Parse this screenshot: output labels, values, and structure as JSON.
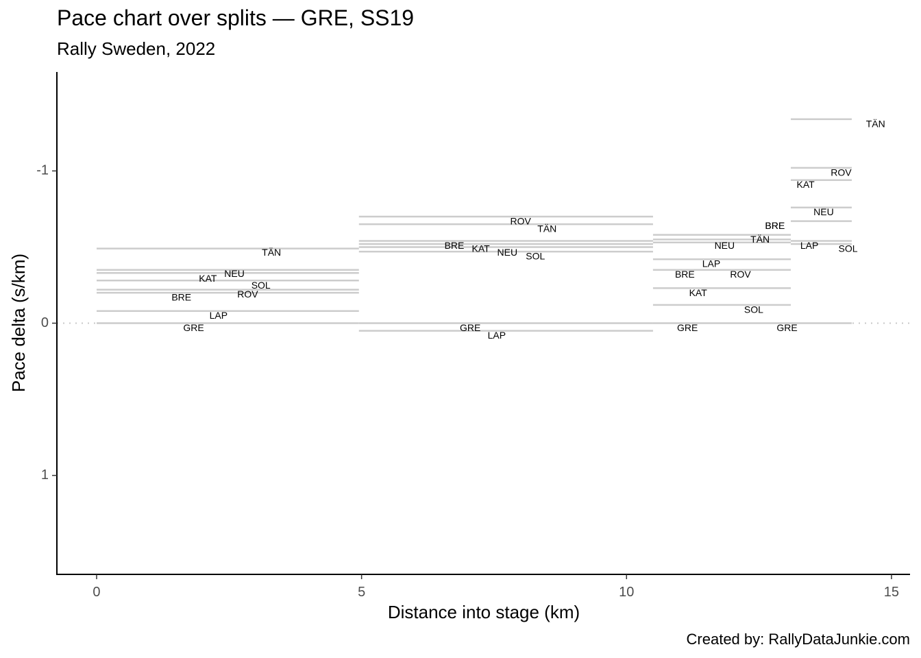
{
  "chart_data": {
    "type": "line",
    "title": "Pace chart over splits — GRE, SS19",
    "subtitle": "Rally Sweden, 2022",
    "caption": "Created by: RallyDataJunkie.com",
    "xlabel": "Distance into stage (km)",
    "ylabel": "Pace delta (s/km)",
    "xlim": [
      -0.75,
      15.35
    ],
    "ylim": [
      1.65,
      -1.65
    ],
    "y_reversed": true,
    "x_ticks": [
      0,
      5,
      10,
      15
    ],
    "y_ticks": [
      -1,
      0,
      1
    ],
    "reference_line": {
      "y": 0,
      "style": "dotted",
      "color": "#c8c8c8"
    },
    "segment_color": "#cccccc",
    "splits": [
      {
        "x_start": 0,
        "x_end": 4.95,
        "series": [
          {
            "name": "TÄN",
            "value": -0.49,
            "label_x": 3.3,
            "label_y": -0.46
          },
          {
            "name": "NEU",
            "value": -0.35,
            "label_x": 2.6,
            "label_y": -0.32
          },
          {
            "name": "KAT",
            "value": -0.33,
            "label_x": 2.1,
            "label_y": -0.29
          },
          {
            "name": "SOL",
            "value": -0.28,
            "label_x": 3.1,
            "label_y": -0.245
          },
          {
            "name": "ROV",
            "value": -0.22,
            "label_x": 2.85,
            "label_y": -0.185
          },
          {
            "name": "BRE",
            "value": -0.2,
            "label_x": 1.6,
            "label_y": -0.165
          },
          {
            "name": "LAP",
            "value": -0.08,
            "label_x": 2.3,
            "label_y": -0.045
          },
          {
            "name": "GRE",
            "value": 0,
            "label_x": 1.83,
            "label_y": 0.035
          }
        ]
      },
      {
        "x_start": 4.95,
        "x_end": 10.5,
        "series": [
          {
            "name": "ROV",
            "value": -0.7,
            "label_x": 8.0,
            "label_y": -0.665
          },
          {
            "name": "TÄN",
            "value": -0.65,
            "label_x": 8.5,
            "label_y": -0.615
          },
          {
            "name": "BRE",
            "value": -0.54,
            "label_x": 6.75,
            "label_y": -0.505
          },
          {
            "name": "KAT",
            "value": -0.52,
            "label_x": 7.25,
            "label_y": -0.485
          },
          {
            "name": "NEU",
            "value": -0.5,
            "label_x": 7.75,
            "label_y": -0.46
          },
          {
            "name": "SOL",
            "value": -0.47,
            "label_x": 8.28,
            "label_y": -0.435
          },
          {
            "name": "GRE",
            "value": 0,
            "label_x": 7.05,
            "label_y": 0.035
          },
          {
            "name": "LAP",
            "value": 0.05,
            "label_x": 7.55,
            "label_y": 0.085
          }
        ]
      },
      {
        "x_start": 10.5,
        "x_end": 13.1,
        "series": [
          {
            "name": "BRE",
            "value": -0.58,
            "label_x": 12.8,
            "label_y": -0.635
          },
          {
            "name": "TÄN",
            "value": -0.55,
            "label_x": 12.52,
            "label_y": -0.545
          },
          {
            "name": "NEU",
            "value": -0.53,
            "label_x": 11.85,
            "label_y": -0.505
          },
          {
            "name": "LAP",
            "value": -0.42,
            "label_x": 11.6,
            "label_y": -0.385
          },
          {
            "name": "ROV",
            "value": -0.35,
            "label_x": 12.15,
            "label_y": -0.315
          },
          {
            "name": "BRE",
            "value": -0.35,
            "label_x": 11.1,
            "label_y": -0.315
          },
          {
            "name": "KAT",
            "value": -0.23,
            "label_x": 11.35,
            "label_y": -0.195
          },
          {
            "name": "SOL",
            "value": -0.12,
            "label_x": 12.4,
            "label_y": -0.085
          },
          {
            "name": "GRE",
            "value": 0,
            "label_x": 11.15,
            "label_y": 0.035
          }
        ]
      },
      {
        "x_start": 13.1,
        "x_end": 14.25,
        "series": [
          {
            "name": "TÄN",
            "value": -1.34,
            "label_x": 14.7,
            "label_y": -1.305
          },
          {
            "name": "ROV",
            "value": -1.02,
            "label_x": 14.05,
            "label_y": -0.985
          },
          {
            "name": "KAT",
            "value": -0.94,
            "label_x": 13.38,
            "label_y": -0.905
          },
          {
            "name": "NEU",
            "value": -0.76,
            "label_x": 13.72,
            "label_y": -0.725
          },
          {
            "name": "BRE",
            "value": -0.67,
            "label_x": 12.8,
            "label_y": -0.635
          },
          {
            "name": "LAP",
            "value": -0.54,
            "label_x": 13.45,
            "label_y": -0.505
          },
          {
            "name": "SOL",
            "value": -0.52,
            "label_x": 14.18,
            "label_y": -0.485
          },
          {
            "name": "GRE",
            "value": 0,
            "label_x": 13.03,
            "label_y": 0.035
          }
        ]
      }
    ]
  }
}
